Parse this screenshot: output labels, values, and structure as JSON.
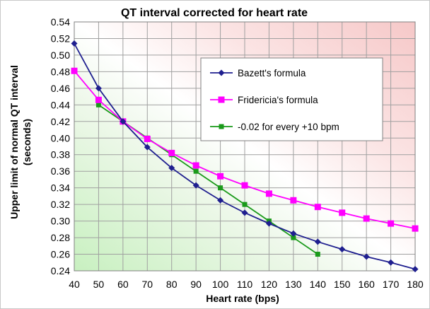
{
  "chart_data": {
    "type": "line",
    "title": "QT  interval corrected for heart rate",
    "xlabel": "Heart rate (bps)",
    "ylabel": "Upper limit of normal QT interval (seconds)",
    "ylabel_lines": [
      "Upper limit of normal QT interval",
      "(seconds)"
    ],
    "xlim": [
      40,
      180
    ],
    "ylim": [
      0.24,
      0.54
    ],
    "x_ticks": [
      40,
      50,
      60,
      70,
      80,
      90,
      100,
      110,
      120,
      130,
      140,
      150,
      160,
      170,
      180
    ],
    "y_ticks": [
      0.24,
      0.26,
      0.28,
      0.3,
      0.32,
      0.34,
      0.36,
      0.38,
      0.4,
      0.42,
      0.44,
      0.46,
      0.48,
      0.5,
      0.52,
      0.54
    ],
    "grid": true,
    "legend_position": "top-right",
    "background": "gradient: red top-right, green bottom-left",
    "series": [
      {
        "name": "Bazett's formula",
        "color": "#1f1f8f",
        "marker": "diamond",
        "x": [
          40,
          50,
          60,
          70,
          80,
          90,
          100,
          110,
          120,
          130,
          140,
          150,
          160,
          170,
          180
        ],
        "values": [
          0.514,
          0.46,
          0.42,
          0.389,
          0.364,
          0.343,
          0.325,
          0.31,
          0.297,
          0.285,
          0.275,
          0.266,
          0.257,
          0.25,
          0.242
        ]
      },
      {
        "name": "Fridericia's formula",
        "color": "#ff00ff",
        "marker": "square",
        "x": [
          40,
          50,
          60,
          70,
          80,
          90,
          100,
          110,
          120,
          130,
          140,
          150,
          160,
          170,
          180
        ],
        "values": [
          0.481,
          0.446,
          0.42,
          0.399,
          0.382,
          0.367,
          0.354,
          0.343,
          0.333,
          0.325,
          0.317,
          0.31,
          0.303,
          0.297,
          0.291
        ]
      },
      {
        "name": "-0.02 for every +10 bpm",
        "color": "#1a9a1a",
        "marker": "square",
        "x": [
          50,
          60,
          70,
          80,
          90,
          100,
          110,
          120,
          130,
          140
        ],
        "values": [
          0.44,
          0.42,
          0.4,
          0.38,
          0.36,
          0.34,
          0.32,
          0.3,
          0.28,
          0.26
        ]
      }
    ]
  }
}
